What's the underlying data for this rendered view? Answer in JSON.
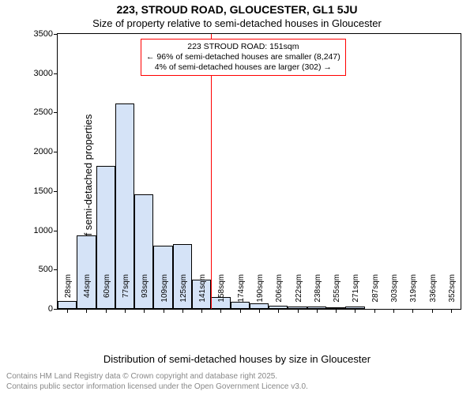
{
  "title": "223, STROUD ROAD, GLOUCESTER, GL1 5JU",
  "subtitle": "Size of property relative to semi-detached houses in Gloucester",
  "ylabel": "Number of semi-detached properties",
  "xlabel": "Distribution of semi-detached houses by size in Gloucester",
  "attribution_line1": "Contains HM Land Registry data © Crown copyright and database right 2025.",
  "attribution_line2": "Contains public sector information licensed under the Open Government Licence v3.0.",
  "chart": {
    "type": "histogram",
    "ylim": [
      0,
      3500
    ],
    "ytick_step": 500,
    "yticks": [
      0,
      500,
      1000,
      1500,
      2000,
      2500,
      3000,
      3500
    ],
    "x_categories": [
      "28sqm",
      "44sqm",
      "60sqm",
      "77sqm",
      "93sqm",
      "109sqm",
      "125sqm",
      "141sqm",
      "158sqm",
      "174sqm",
      "190sqm",
      "206sqm",
      "222sqm",
      "238sqm",
      "255sqm",
      "271sqm",
      "287sqm",
      "303sqm",
      "319sqm",
      "336sqm",
      "352sqm"
    ],
    "values": [
      100,
      940,
      1820,
      2620,
      1460,
      800,
      820,
      370,
      150,
      90,
      70,
      40,
      30,
      30,
      20,
      30,
      0,
      0,
      0,
      0,
      0
    ],
    "bar_fill": "#d5e3f7",
    "bar_border": "#000000",
    "background_color": "#ffffff",
    "axis_color": "#000000",
    "marker_line": {
      "category_index": 8,
      "color": "#ff0000"
    },
    "annotation": {
      "line1": "223 STROUD ROAD: 151sqm",
      "line2": "← 96% of semi-detached houses are smaller (8,247)",
      "line3": "4% of semi-detached houses are larger (302) →",
      "border_color": "#ff0000",
      "background": "#ffffff",
      "fontsize": 10.5
    }
  }
}
